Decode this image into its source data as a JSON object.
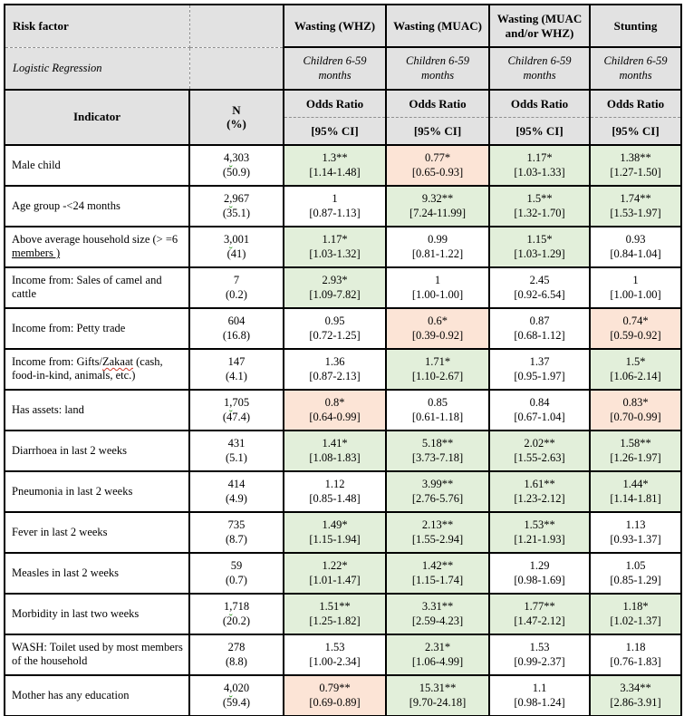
{
  "colors": {
    "green_fill": "#E2EFDA",
    "red_fill": "#FCE4D6",
    "header_fill": "#E2E2E2",
    "border": "#000000"
  },
  "header": {
    "risk_factor": "Risk factor",
    "logistic_regression": "Logistic Regression",
    "outcomes": [
      "Wasting (WHZ)",
      "Wasting (MUAC)",
      "Wasting (MUAC and/or WHZ)",
      "Stunting"
    ],
    "population": "Children 6-59 months",
    "indicator": "Indicator",
    "n_line1": "N",
    "n_line2": "(%)",
    "or_label": "Odds Ratio",
    "ci_label": "[95% CI]"
  },
  "rows": [
    {
      "parts": [
        {
          "t": "Male child",
          "s": "plain"
        }
      ],
      "n": "4,303",
      "pct": "(50.9)",
      "cells": [
        {
          "or": "1.3**",
          "ci": "[1.14-1.48]",
          "bg": "green"
        },
        {
          "or": "0.77*",
          "ci": "[0.65-0.93]",
          "bg": "red"
        },
        {
          "or": "1.17*",
          "ci": "[1.03-1.33]",
          "bg": "green"
        },
        {
          "or": "1.38**",
          "ci": "[1.27-1.50]",
          "bg": "green"
        }
      ]
    },
    {
      "parts": [
        {
          "t": "Age group -<24 months",
          "s": "plain"
        }
      ],
      "n": "2,967",
      "pct": "(35.1)",
      "cells": [
        {
          "or": "1",
          "ci": "[0.87-1.13]",
          "bg": "none"
        },
        {
          "or": "9.32**",
          "ci": "[7.24-11.99]",
          "bg": "green"
        },
        {
          "or": "1.5**",
          "ci": "[1.32-1.70]",
          "bg": "green"
        },
        {
          "or": "1.74**",
          "ci": "[1.53-1.97]",
          "bg": "green"
        }
      ]
    },
    {
      "parts": [
        {
          "t": "Above average household size (> =6 ",
          "s": "plain"
        },
        {
          "t": "members )",
          "s": "underline"
        }
      ],
      "n": "3,001",
      "pct": "(41)",
      "cells": [
        {
          "or": "1.17*",
          "ci": "[1.03-1.32]",
          "bg": "green"
        },
        {
          "or": "0.99",
          "ci": "[0.81-1.22]",
          "bg": "none"
        },
        {
          "or": "1.15*",
          "ci": "[1.03-1.29]",
          "bg": "green"
        },
        {
          "or": "0.93",
          "ci": "[0.84-1.04]",
          "bg": "none"
        }
      ]
    },
    {
      "parts": [
        {
          "t": "Income from: Sales of camel and cattle",
          "s": "plain"
        }
      ],
      "n": "7",
      "pct": "(0.2)",
      "cells": [
        {
          "or": "2.93*",
          "ci": "[1.09-7.82]",
          "bg": "green"
        },
        {
          "or": "1",
          "ci": "[1.00-1.00]",
          "bg": "none"
        },
        {
          "or": "2.45",
          "ci": "[0.92-6.54]",
          "bg": "none"
        },
        {
          "or": "1",
          "ci": "[1.00-1.00]",
          "bg": "none"
        }
      ]
    },
    {
      "parts": [
        {
          "t": "Income from: Petty trade",
          "s": "plain"
        }
      ],
      "n": "604",
      "pct": "(16.8)",
      "cells": [
        {
          "or": "0.95",
          "ci": "[0.72-1.25]",
          "bg": "none"
        },
        {
          "or": "0.6*",
          "ci": "[0.39-0.92]",
          "bg": "red"
        },
        {
          "or": "0.87",
          "ci": "[0.68-1.12]",
          "bg": "none"
        },
        {
          "or": "0.74*",
          "ci": "[0.59-0.92]",
          "bg": "red"
        }
      ]
    },
    {
      "parts": [
        {
          "t": "Income from: Gifts/",
          "s": "plain"
        },
        {
          "t": "Zakaat",
          "s": "squiggle"
        },
        {
          "t": " (cash, food-in-kind, animals, etc.)",
          "s": "plain"
        }
      ],
      "n": "147",
      "pct": "(4.1)",
      "cells": [
        {
          "or": "1.36",
          "ci": "[0.87-2.13]",
          "bg": "none"
        },
        {
          "or": "1.71*",
          "ci": "[1.10-2.67]",
          "bg": "green"
        },
        {
          "or": "1.37",
          "ci": "[0.95-1.97]",
          "bg": "none"
        },
        {
          "or": "1.5*",
          "ci": "[1.06-2.14]",
          "bg": "green"
        }
      ]
    },
    {
      "parts": [
        {
          "t": "Has assets: land",
          "s": "plain"
        }
      ],
      "n": "1,705",
      "pct": "(47.4)",
      "cells": [
        {
          "or": "0.8*",
          "ci": "[0.64-0.99]",
          "bg": "red"
        },
        {
          "or": "0.85",
          "ci": "[0.61-1.18]",
          "bg": "none"
        },
        {
          "or": "0.84",
          "ci": "[0.67-1.04]",
          "bg": "none"
        },
        {
          "or": "0.83*",
          "ci": "[0.70-0.99]",
          "bg": "red"
        }
      ]
    },
    {
      "parts": [
        {
          "t": "Diarrhoea in last 2 weeks",
          "s": "plain"
        }
      ],
      "n": "431",
      "pct": "(5.1)",
      "cells": [
        {
          "or": "1.41*",
          "ci": "[1.08-1.83]",
          "bg": "green"
        },
        {
          "or": "5.18**",
          "ci": "[3.73-7.18]",
          "bg": "green"
        },
        {
          "or": "2.02**",
          "ci": "[1.55-2.63]",
          "bg": "green"
        },
        {
          "or": "1.58**",
          "ci": "[1.26-1.97]",
          "bg": "green"
        }
      ]
    },
    {
      "parts": [
        {
          "t": "Pneumonia in last 2 weeks",
          "s": "plain"
        }
      ],
      "n": "414",
      "pct": "(4.9)",
      "cells": [
        {
          "or": "1.12",
          "ci": "[0.85-1.48]",
          "bg": "none"
        },
        {
          "or": "3.99**",
          "ci": "[2.76-5.76]",
          "bg": "green"
        },
        {
          "or": "1.61**",
          "ci": "[1.23-2.12]",
          "bg": "green"
        },
        {
          "or": "1.44*",
          "ci": "[1.14-1.81]",
          "bg": "green"
        }
      ]
    },
    {
      "parts": [
        {
          "t": "Fever in last 2 weeks",
          "s": "plain"
        }
      ],
      "n": "735",
      "pct": "(8.7)",
      "cells": [
        {
          "or": "1.49*",
          "ci": "[1.15-1.94]",
          "bg": "green"
        },
        {
          "or": "2.13**",
          "ci": "[1.55-2.94]",
          "bg": "green"
        },
        {
          "or": "1.53**",
          "ci": "[1.21-1.93]",
          "bg": "green"
        },
        {
          "or": "1.13",
          "ci": "[0.93-1.37]",
          "bg": "none"
        }
      ]
    },
    {
      "parts": [
        {
          "t": "Measles in last 2 weeks",
          "s": "plain"
        }
      ],
      "n": "59",
      "pct": "(0.7)",
      "cells": [
        {
          "or": "1.22*",
          "ci": "[1.01-1.47]",
          "bg": "green"
        },
        {
          "or": "1.42**",
          "ci": "[1.15-1.74]",
          "bg": "green"
        },
        {
          "or": "1.29",
          "ci": "[0.98-1.69]",
          "bg": "none"
        },
        {
          "or": "1.05",
          "ci": "[0.85-1.29]",
          "bg": "none"
        }
      ]
    },
    {
      "parts": [
        {
          "t": "Morbidity in last two weeks",
          "s": "plain"
        }
      ],
      "n": "1,718",
      "pct": "(20.2)",
      "cells": [
        {
          "or": "1.51**",
          "ci": "[1.25-1.82]",
          "bg": "green"
        },
        {
          "or": "3.31**",
          "ci": "[2.59-4.23]",
          "bg": "green"
        },
        {
          "or": "1.77**",
          "ci": "[1.47-2.12]",
          "bg": "green"
        },
        {
          "or": "1.18*",
          "ci": "[1.02-1.37]",
          "bg": "green"
        }
      ]
    },
    {
      "parts": [
        {
          "t": "WASH: Toilet used by most members of the household",
          "s": "plain"
        }
      ],
      "n": "278",
      "pct": "(8.8)",
      "cells": [
        {
          "or": "1.53",
          "ci": "[1.00-2.34]",
          "bg": "none"
        },
        {
          "or": "2.31*",
          "ci": "[1.06-4.99]",
          "bg": "green"
        },
        {
          "or": "1.53",
          "ci": "[0.99-2.37]",
          "bg": "none"
        },
        {
          "or": "1.18",
          "ci": "[0.76-1.83]",
          "bg": "none"
        }
      ]
    },
    {
      "parts": [
        {
          "t": "Mother has any education",
          "s": "plain"
        }
      ],
      "n": "4,020",
      "pct": "(59.4)",
      "cells": [
        {
          "or": "0.79**",
          "ci": "[0.69-0.89]",
          "bg": "red"
        },
        {
          "or": "15.31**",
          "ci": "[9.70-24.18]",
          "bg": "green"
        },
        {
          "or": "1.1",
          "ci": "[0.98-1.24]",
          "bg": "none"
        },
        {
          "or": "3.34**",
          "ci": "[2.86-3.91]",
          "bg": "green"
        }
      ]
    }
  ]
}
